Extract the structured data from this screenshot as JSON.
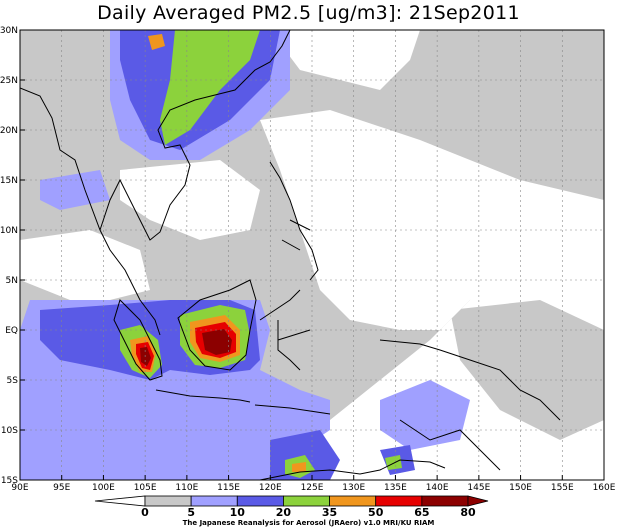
{
  "title": "Daily Averaged PM2.5 [ug/m3]: 21Sep2011",
  "credit": "The Japanese Reanalysis for Aerosol (JRAero) v1.0 MRI/KU RIAM",
  "map": {
    "lon_range": [
      90,
      160
    ],
    "lat_range": [
      -15,
      30
    ],
    "lon_ticks": [
      {
        "value": 90,
        "label": "90E"
      },
      {
        "value": 95,
        "label": "95E"
      },
      {
        "value": 100,
        "label": "100E"
      },
      {
        "value": 105,
        "label": "105E"
      },
      {
        "value": 110,
        "label": "110E"
      },
      {
        "value": 115,
        "label": "115E"
      },
      {
        "value": 120,
        "label": "120E"
      },
      {
        "value": 125,
        "label": "125E"
      },
      {
        "value": 130,
        "label": "130E"
      },
      {
        "value": 135,
        "label": "135E"
      },
      {
        "value": 140,
        "label": "140E"
      },
      {
        "value": 145,
        "label": "145E"
      },
      {
        "value": 150,
        "label": "150E"
      },
      {
        "value": 155,
        "label": "155E"
      },
      {
        "value": 160,
        "label": "160E"
      }
    ],
    "lat_ticks": [
      {
        "value": 30,
        "label": "30N"
      },
      {
        "value": 25,
        "label": "25N"
      },
      {
        "value": 20,
        "label": "20N"
      },
      {
        "value": 15,
        "label": "15N"
      },
      {
        "value": 10,
        "label": "10N"
      },
      {
        "value": 5,
        "label": "5N"
      },
      {
        "value": 0,
        "label": "EQ"
      },
      {
        "value": -5,
        "label": "5S"
      },
      {
        "value": -10,
        "label": "10S"
      },
      {
        "value": -15,
        "label": "15S"
      }
    ],
    "grid": true
  },
  "colorbar": {
    "levels": [
      "0",
      "5",
      "10",
      "20",
      "35",
      "50",
      "65",
      "80"
    ],
    "colors": [
      "#ffffff",
      "#c8c8c8",
      "#a0a0ff",
      "#5a5ae6",
      "#8cd23c",
      "#f0961e",
      "#e60000",
      "#8c0000"
    ]
  }
}
